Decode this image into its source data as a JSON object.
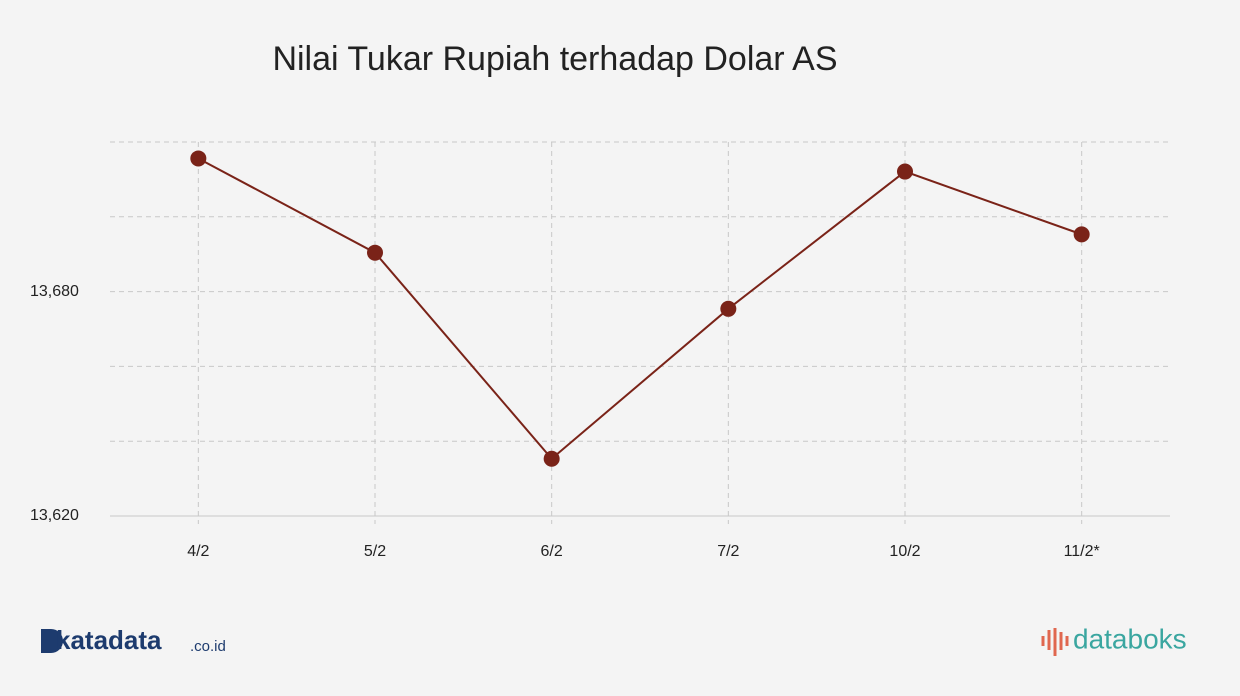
{
  "chart_data": {
    "type": "line",
    "title": "Nilai Tukar Rupiah terhadap Dolar AS",
    "categories": [
      "4/2",
      "5/2",
      "6/2",
      "7/2",
      "10/2",
      "11/2*"
    ],
    "series": [
      {
        "name": "Rupiah",
        "color": "#7a2318",
        "values": [
          13715.6,
          13690.4,
          13635.3,
          13675.4,
          13712.1,
          13695.3
        ]
      }
    ],
    "ylim": [
      13620,
      13720
    ],
    "yticks": [
      {
        "value": 13620,
        "label": "13,620"
      },
      {
        "value": 13640
      },
      {
        "value": 13660
      },
      {
        "value": 13680,
        "label": "13,680"
      },
      {
        "value": 13700
      },
      {
        "value": 13720
      }
    ],
    "grid": true
  },
  "footer": {
    "left_brand": "katadata",
    "left_suffix": ".co.id",
    "right_brand": "databoks"
  }
}
